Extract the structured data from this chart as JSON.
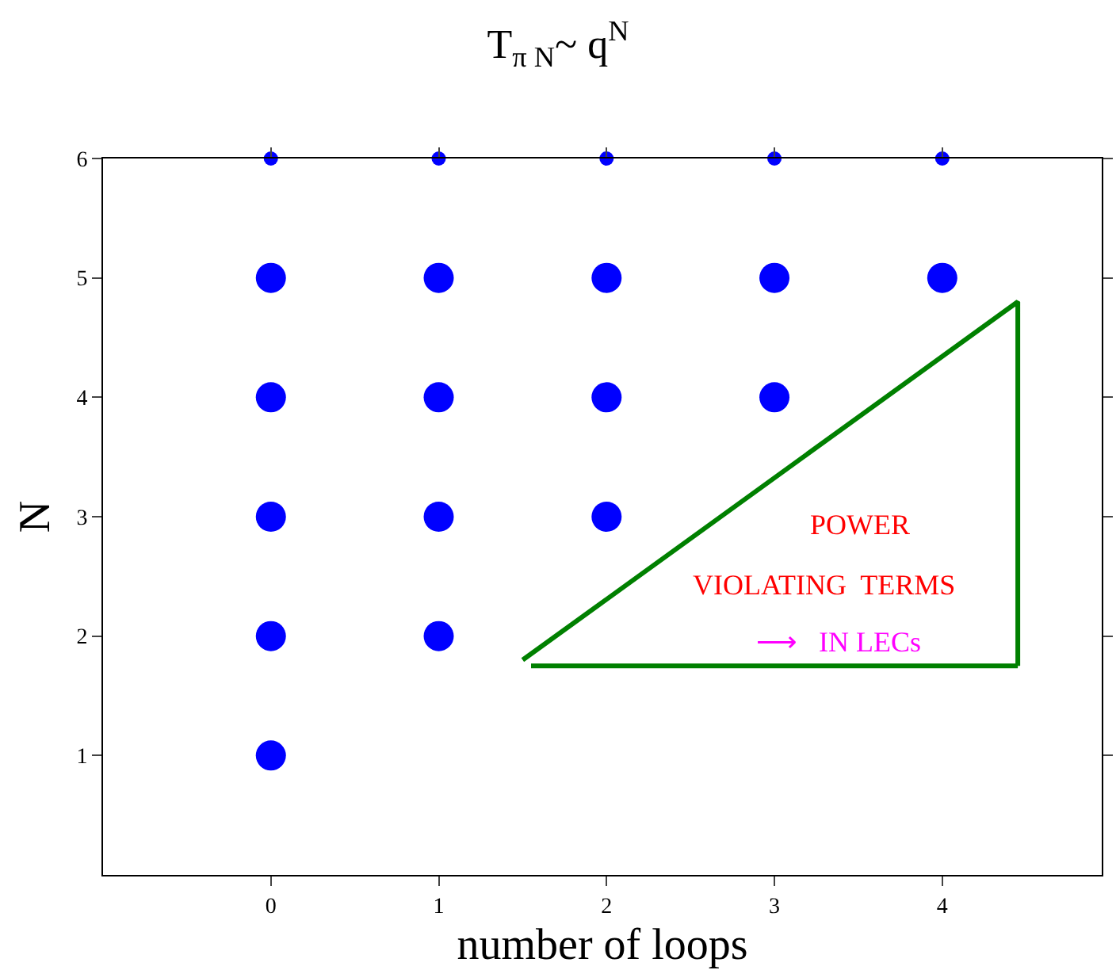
{
  "chart_data": {
    "type": "scatter",
    "title": "T$_{π N}$~ q$^{N}$",
    "xlabel": "number of loops",
    "ylabel": "N",
    "xlim": [
      -1,
      4.95
    ],
    "ylim": [
      0,
      6
    ],
    "xticks": [
      0,
      1,
      2,
      3,
      4
    ],
    "yticks": [
      1,
      2,
      3,
      4,
      5,
      6
    ],
    "legend": false,
    "marker": "circle",
    "series": [
      {
        "color": "#0000ff",
        "x": [
          0,
          1,
          2,
          3,
          4
        ],
        "values": [
          6,
          6,
          6,
          6,
          6
        ]
      },
      {
        "color": "#0000ff",
        "x": [
          0,
          1,
          2,
          3,
          4,
          0,
          1,
          2,
          3,
          0,
          1,
          2,
          0,
          1,
          0
        ],
        "values": [
          5,
          5,
          5,
          5,
          5,
          4,
          4,
          4,
          4,
          3,
          3,
          3,
          2,
          2,
          1
        ]
      },
      {
        "type": "line",
        "color": "#008000",
        "x": [
          1.5,
          4.45,
          4.45
        ],
        "values": [
          1.8,
          4.8,
          1.75
        ],
        "marker": "none"
      },
      {
        "type": "line",
        "color": "#008000",
        "x": [
          1.55,
          4.45
        ],
        "values": [
          1.75,
          1.75
        ],
        "marker": "none"
      }
    ],
    "annotations": [
      "POWER",
      "VIOLATING  TERMS",
      "⟶   IN LECs"
    ]
  }
}
